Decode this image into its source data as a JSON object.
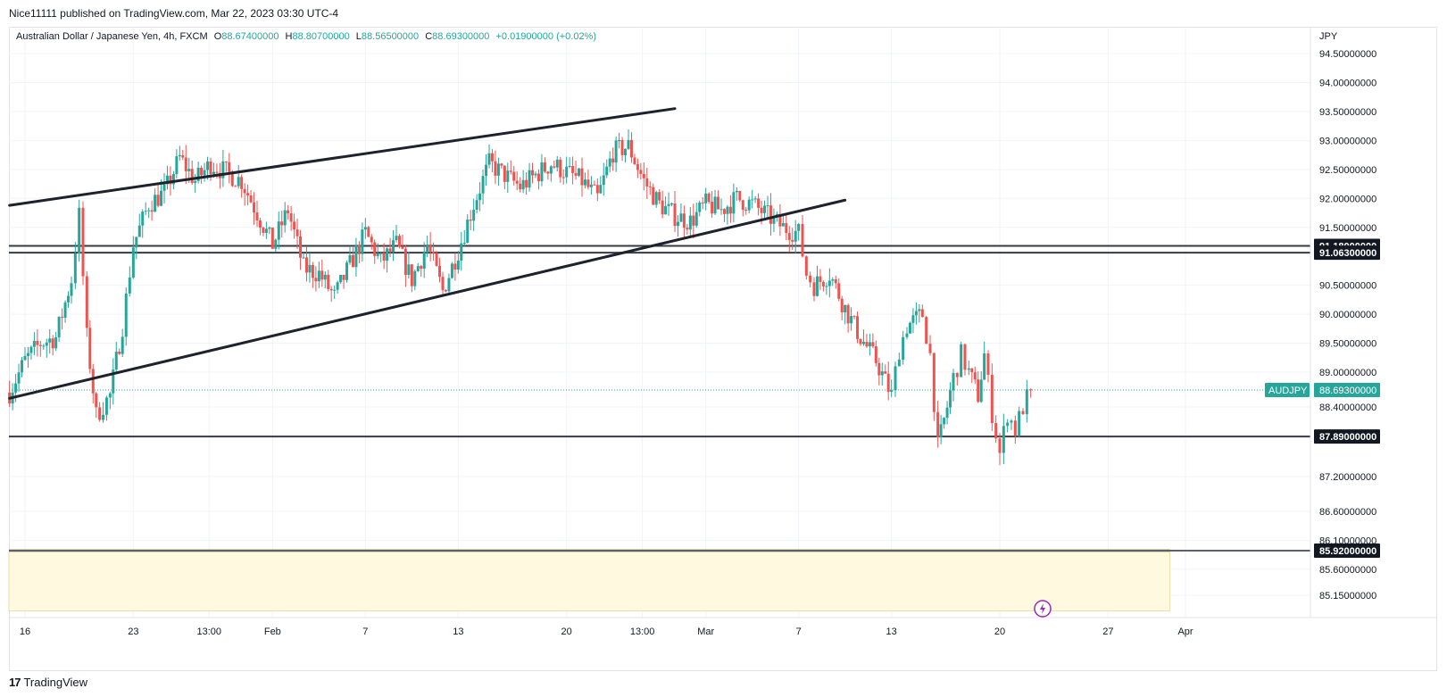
{
  "header": {
    "publisher": "Nice11111 published on TradingView.com, Mar 22, 2023 03:30 UTC-4"
  },
  "legend": {
    "symbol": "Australian Dollar / Japanese Yen, 4h, FXCM",
    "open_label": "O",
    "open": "88.67400000",
    "high_label": "H",
    "high": "88.80700000",
    "low_label": "L",
    "low": "88.56500000",
    "close_label": "C",
    "close": "88.69300000",
    "change": "+0.01900000 (+0.02%)"
  },
  "footer": {
    "brand": "TradingView",
    "logo": "17"
  },
  "colors": {
    "up": "#26a69a",
    "down": "#ef5350",
    "trendline": "#1e222d",
    "level": "#363a45",
    "zone_fill": "#fff9e0",
    "zone_border": "#b5ad6b",
    "current_price": "#26a69a"
  },
  "chart_data": {
    "type": "candlestick",
    "symbol": "AUDJPY",
    "interval": "4h",
    "currency": "JPY",
    "y_ticks": [
      "94.50000000",
      "94.00000000",
      "93.50000000",
      "93.00000000",
      "92.50000000",
      "92.00000000",
      "91.50000000",
      "90.50000000",
      "90.00000000",
      "89.50000000",
      "89.00000000",
      "88.40000000",
      "87.20000000",
      "86.60000000",
      "86.10000000",
      "85.60000000",
      "85.15000000"
    ],
    "x_ticks": [
      "16",
      "23",
      "13:00",
      "Feb",
      "7",
      "13",
      "20",
      "13:00",
      "Mar",
      "7",
      "13",
      "20",
      "27",
      "Apr"
    ],
    "current_price": {
      "label": "AUDJPY",
      "value": 88.693,
      "text": "88.69300000"
    },
    "horizontal_levels": [
      {
        "value": 91.18,
        "text": "91.18000000"
      },
      {
        "value": 91.063,
        "text": "91.06300000"
      },
      {
        "value": 87.89,
        "text": "87.89000000"
      },
      {
        "value": 85.92,
        "text": "85.92000000"
      }
    ],
    "trend_lines": [
      {
        "from": [
          "Jan 15",
          91.88
        ],
        "to": [
          "Feb 27",
          93.55
        ]
      },
      {
        "from": [
          "Jan 15",
          88.55
        ],
        "to": [
          "Mar 10",
          91.97
        ]
      }
    ],
    "demand_zone": {
      "top": 85.92,
      "bottom": 84.88,
      "from": "Jan 15",
      "to": "Mar 31"
    },
    "path_close": [
      [
        "Jan 15",
        88.65
      ],
      [
        "Jan 16",
        89.2
      ],
      [
        "Jan 17",
        89.5
      ],
      [
        "Jan 18",
        89.6
      ],
      [
        "Jan 19",
        90.6
      ],
      [
        "Jan 19.5",
        91.7
      ],
      [
        "Jan 20",
        89.6
      ],
      [
        "Jan 20.6",
        88.25
      ],
      [
        "Jan 21.5",
        88.6
      ],
      [
        "Jan 22.3",
        89.8
      ],
      [
        "Jan 23",
        91.2
      ],
      [
        "Jan 24",
        91.9
      ],
      [
        "Jan 25",
        92.1
      ],
      [
        "Jan 26",
        92.7
      ],
      [
        "Jan 27",
        92.3
      ],
      [
        "Jan 28",
        92.6
      ],
      [
        "Jan 30",
        92.3
      ],
      [
        "Feb 1",
        91.2
      ],
      [
        "Feb 2",
        91.8
      ],
      [
        "Feb 3",
        90.8
      ],
      [
        "Feb 4",
        90.7
      ],
      [
        "Feb 5",
        90.3
      ],
      [
        "Feb 7",
        91.4
      ],
      [
        "Feb 8",
        90.9
      ],
      [
        "Feb 9",
        91.2
      ],
      [
        "Feb 10",
        90.6
      ],
      [
        "Feb 11",
        91.2
      ],
      [
        "Feb 12",
        90.4
      ],
      [
        "Feb 13",
        91.1
      ],
      [
        "Feb 14",
        91.9
      ],
      [
        "Feb 15",
        92.6
      ],
      [
        "Feb 16",
        92.4
      ],
      [
        "Feb 17",
        92.2
      ],
      [
        "Feb 19",
        92.6
      ],
      [
        "Feb 21",
        92.3
      ],
      [
        "Feb 22",
        92.0
      ],
      [
        "Feb 23",
        92.8
      ],
      [
        "Feb 24",
        92.9
      ],
      [
        "Feb 25",
        92.3
      ],
      [
        "Feb 26",
        91.9
      ],
      [
        "Feb 27",
        91.7
      ],
      [
        "Feb 28",
        91.6
      ],
      [
        "Mar 1",
        91.9
      ],
      [
        "Mar 2",
        91.8
      ],
      [
        "Mar 3",
        92.0
      ],
      [
        "Mar 4",
        91.9
      ],
      [
        "Mar 5",
        91.7
      ],
      [
        "Mar 6",
        91.5
      ],
      [
        "Mar 7",
        91.4
      ],
      [
        "Mar 7.5",
        90.7
      ],
      [
        "Mar 8",
        90.5
      ],
      [
        "Mar 9",
        90.7
      ],
      [
        "Mar 10",
        90.1
      ],
      [
        "Mar 11",
        89.6
      ],
      [
        "Mar 12",
        89.2
      ],
      [
        "Mar 13",
        88.6
      ],
      [
        "Mar 13.5",
        89.4
      ],
      [
        "Mar 14",
        89.8
      ],
      [
        "Mar 15",
        90.0
      ],
      [
        "Mar 15.5",
        89.3
      ],
      [
        "Mar 16",
        87.7
      ],
      [
        "Mar 16.6",
        88.4
      ],
      [
        "Mar 17",
        88.9
      ],
      [
        "Mar 17.5",
        89.3
      ],
      [
        "Mar 18",
        89.0
      ],
      [
        "Mar 18.6",
        88.6
      ],
      [
        "Mar 19",
        89.3
      ],
      [
        "Mar 19.5",
        88.3
      ],
      [
        "Mar 20",
        87.6
      ],
      [
        "Mar 20.5",
        88.3
      ],
      [
        "Mar 21",
        88.0
      ],
      [
        "Mar 21.5",
        88.4
      ],
      [
        "Mar 22",
        88.693
      ]
    ]
  }
}
